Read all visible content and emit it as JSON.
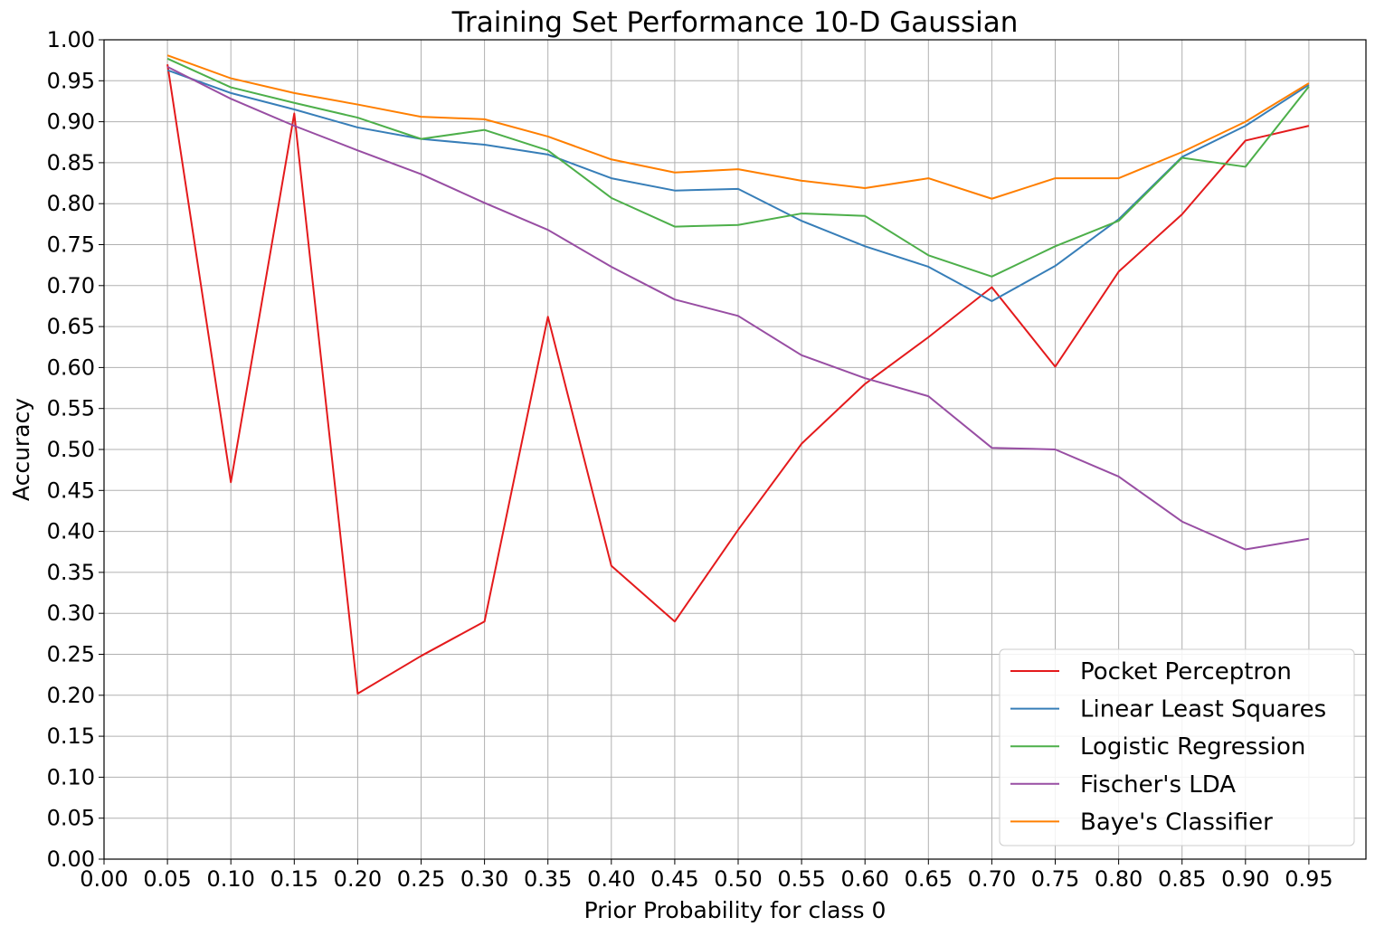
{
  "chart_data": {
    "type": "line",
    "title": "Training Set Performance 10-D Gaussian",
    "xlabel": "Prior Probability for class 0",
    "ylabel": "Accuracy",
    "xlim": [
      0.0,
      0.995
    ],
    "ylim": [
      0.0,
      1.0
    ],
    "xticks": [
      "0.00",
      "0.05",
      "0.10",
      "0.15",
      "0.20",
      "0.25",
      "0.30",
      "0.35",
      "0.40",
      "0.45",
      "0.50",
      "0.55",
      "0.60",
      "0.65",
      "0.70",
      "0.75",
      "0.80",
      "0.85",
      "0.90",
      "0.95"
    ],
    "yticks": [
      "0.00",
      "0.05",
      "0.10",
      "0.15",
      "0.20",
      "0.25",
      "0.30",
      "0.35",
      "0.40",
      "0.45",
      "0.50",
      "0.55",
      "0.60",
      "0.65",
      "0.70",
      "0.75",
      "0.80",
      "0.85",
      "0.90",
      "0.95",
      "1.00"
    ],
    "grid": true,
    "legend_position": "lower-right",
    "x": [
      0.05,
      0.1,
      0.15,
      0.2,
      0.25,
      0.3,
      0.35,
      0.4,
      0.45,
      0.5,
      0.55,
      0.6,
      0.65,
      0.7,
      0.75,
      0.8,
      0.85,
      0.9,
      0.95
    ],
    "series": [
      {
        "name": "Pocket Perceptron",
        "color": "#e41a1c",
        "values": [
          0.97,
          0.46,
          0.91,
          0.202,
          0.248,
          0.29,
          0.662,
          0.358,
          0.29,
          0.402,
          0.507,
          0.58,
          0.637,
          0.698,
          0.601,
          0.717,
          0.787,
          0.877,
          0.895
        ]
      },
      {
        "name": "Linear Least Squares",
        "color": "#377eb8",
        "values": [
          0.963,
          0.935,
          0.915,
          0.893,
          0.879,
          0.872,
          0.86,
          0.831,
          0.816,
          0.818,
          0.779,
          0.748,
          0.723,
          0.681,
          0.724,
          0.781,
          0.857,
          0.895,
          0.945
        ]
      },
      {
        "name": "Logistic Regression",
        "color": "#4daf4a",
        "values": [
          0.977,
          0.942,
          0.923,
          0.905,
          0.879,
          0.89,
          0.865,
          0.807,
          0.772,
          0.774,
          0.788,
          0.785,
          0.737,
          0.711,
          0.748,
          0.779,
          0.856,
          0.845,
          0.943
        ]
      },
      {
        "name": "Fischer's LDA",
        "color": "#984ea3",
        "values": [
          0.967,
          0.928,
          0.895,
          0.865,
          0.836,
          0.801,
          0.768,
          0.723,
          0.683,
          0.663,
          0.615,
          0.587,
          0.565,
          0.502,
          0.5,
          0.467,
          0.412,
          0.378,
          0.391
        ]
      },
      {
        "name": "Baye's Classifier",
        "color": "#ff7f00",
        "values": [
          0.981,
          0.953,
          0.935,
          0.921,
          0.906,
          0.903,
          0.882,
          0.854,
          0.838,
          0.842,
          0.828,
          0.819,
          0.831,
          0.806,
          0.831,
          0.831,
          0.863,
          0.9,
          0.947
        ]
      }
    ]
  }
}
